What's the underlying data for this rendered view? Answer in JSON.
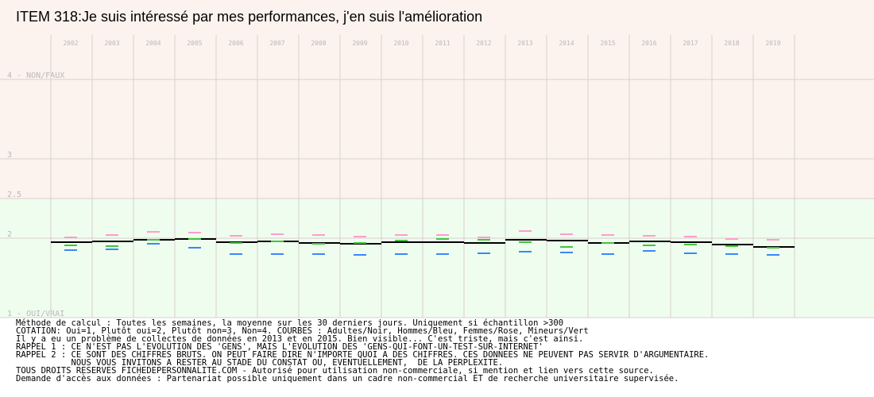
{
  "title": "ITEM 318:Je suis intéressé par mes performances, j'en suis l'amélioration",
  "chart_data": {
    "type": "line",
    "title": "ITEM 318:Je suis intéressé par mes performances, j'en suis l'amélioration",
    "categories": [
      "2002",
      "2003",
      "2004",
      "2005",
      "2006",
      "2007",
      "2008",
      "2009",
      "2010",
      "2011",
      "2012",
      "2013",
      "2014",
      "2015",
      "2016",
      "2017",
      "2018",
      "2019"
    ],
    "ylim": [
      1,
      5
    ],
    "y_ticks": [
      {
        "value": 4,
        "label": "4 - NON/FAUX"
      },
      {
        "value": 3,
        "label": "3"
      },
      {
        "value": 2.5,
        "label": "2.5"
      },
      {
        "value": 2,
        "label": "2"
      },
      {
        "value": 1,
        "label": "1 - OUI/VRAI"
      }
    ],
    "bands": [
      {
        "from": 2.5,
        "to": 5,
        "color": "#fdf3ee"
      },
      {
        "from": 1,
        "to": 2.5,
        "color": "#effdee"
      }
    ],
    "grid": true,
    "series": [
      {
        "key": "adultes",
        "color": "#000000",
        "values": [
          1.95,
          1.96,
          1.98,
          1.99,
          1.95,
          1.96,
          1.94,
          1.93,
          1.95,
          1.95,
          1.94,
          1.98,
          1.97,
          1.94,
          1.96,
          1.95,
          1.92,
          1.89
        ]
      },
      {
        "key": "hommes",
        "color": "#3a86ff",
        "values": [
          1.85,
          1.86,
          1.93,
          1.88,
          1.8,
          1.8,
          1.8,
          1.79,
          1.8,
          1.8,
          1.81,
          1.83,
          1.82,
          1.8,
          1.84,
          1.81,
          1.8,
          1.79
        ]
      },
      {
        "key": "femmes",
        "color": "#ff9ccf",
        "values": [
          2.01,
          2.04,
          2.08,
          2.07,
          2.03,
          2.05,
          2.04,
          2.02,
          2.04,
          2.04,
          2.01,
          2.09,
          2.05,
          2.04,
          2.03,
          2.02,
          1.99,
          1.98
        ]
      },
      {
        "key": "mineurs",
        "color": "#41c441",
        "values": [
          1.91,
          1.9,
          1.98,
          1.99,
          1.94,
          1.96,
          1.93,
          1.94,
          1.97,
          1.99,
          1.98,
          1.95,
          1.89,
          1.94,
          1.91,
          1.92,
          1.9,
          1.88
        ]
      }
    ]
  },
  "notes": [
    "Méthode de calcul : Toutes les semaines, la moyenne sur les 30 derniers jours. Uniquement si échantillon >300",
    "COTATION: Oui=1, Plutôt oui=2, Plutôt non=3, Non=4. COURBES : Adultes/Noir, Hommes/Bleu, Femmes/Rose, Mineurs/Vert",
    "Il y a eu un problème de collectes de données en 2013 et en 2015. Bien visible... C'est triste, mais c'est ainsi.",
    "RAPPEL 1 : CE N'EST PAS L'EVOLUTION DES 'GENS', MAIS L'EVOLUTION DES 'GENS-QUI-FONT-UN-TEST-SUR-INTERNET'",
    "RAPPEL 2 : CE SONT DES CHIFFRES BRUTS. ON PEUT FAIRE DIRE N'IMPORTE QUOI A DES CHIFFRES. CES DONNEES NE PEUVENT PAS SERVIR D'ARGUMENTAIRE.",
    "           NOUS VOUS INVITONS A RESTER AU STADE DU CONSTAT OU, EVENTUELLEMENT,  DE LA PERPLEXITE.",
    "TOUS DROITS RESERVES FICHEDEPERSONNALITE.COM - Autorisé pour utilisation non-commerciale, si mention et lien vers cette source.",
    "Demande d'accès aux données : Partenariat possible uniquement dans un cadre non-commercial ET de recherche universitaire supervisée."
  ]
}
